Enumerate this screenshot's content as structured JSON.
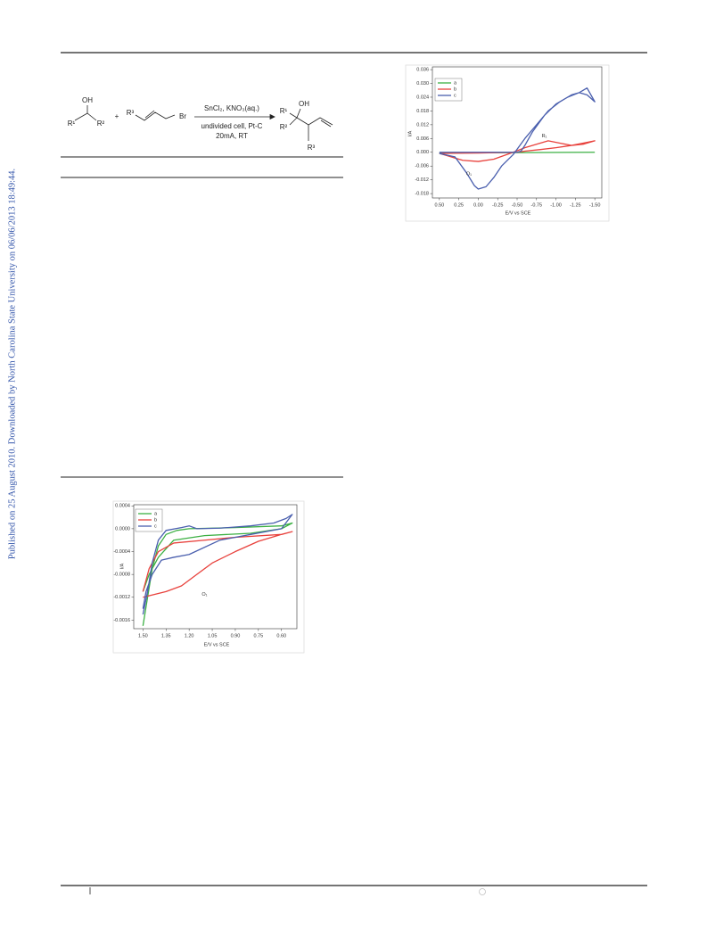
{
  "sidebar": "Published on 25 August 2010. Downloaded by North Carolina State University on 06/06/2013 18:49:44.",
  "scheme": {
    "texts": [
      "OH",
      "R¹",
      "R²",
      "+",
      "R³",
      "Br",
      "SnCl₂, KNO₃(aq.)",
      "undivided cell, Pt-C",
      "20mA, RT",
      "OH",
      "R¹",
      "R²",
      "R³"
    ]
  },
  "chart_data": [
    {
      "type": "line",
      "xlabel": "E/V vs SCE",
      "ylabel": "I/A",
      "legend": "upper left",
      "xlim": [
        0.59,
        -1.59
      ],
      "ylim": [
        -0.0199,
        0.0372
      ],
      "xticks": [
        {
          "value": 0.5,
          "label": "0.50"
        },
        0.25,
        {
          "value": 0,
          "label": "0.00"
        },
        -0.25,
        {
          "value": -0.5,
          "label": "-0.50"
        },
        -0.75,
        {
          "value": -1,
          "label": "-1.00"
        },
        -1.25,
        {
          "value": -1.5,
          "label": "-1.50"
        }
      ],
      "yticks": [
        {
          "value": 0.036,
          "label": "0.036"
        },
        {
          "value": 0.03,
          "label": "0.030"
        },
        0.024,
        0.018,
        0.012,
        0.006,
        {
          "value": 0,
          "label": "0.000"
        },
        -0.006,
        -0.012,
        -0.018
      ],
      "annotations": [
        {
          "text": "R₁",
          "x": -0.85,
          "y": 0.007
        },
        {
          "text": "O₁",
          "x": 0.12,
          "y": -0.0095
        }
      ],
      "series": [
        {
          "name": "a",
          "color": "#3cb043",
          "x": [
            0.5,
            -1.5
          ],
          "values": [
            -0.0003,
            0
          ]
        },
        {
          "name": "b",
          "color": "#e8413c",
          "x": [
            0.5,
            0.35,
            0.2,
            0.0,
            -0.2,
            -0.45,
            -0.6,
            -0.75,
            -0.9,
            -1.05,
            -1.2,
            -1.35,
            -1.5,
            -1.35,
            -1.2,
            -1.0,
            -0.8,
            -0.6,
            -0.5,
            0.0,
            0.5
          ],
          "values": [
            -0.0005,
            -0.002,
            -0.0035,
            -0.004,
            -0.003,
            0,
            0.002,
            0.0035,
            0.005,
            0.004,
            0.003,
            0.0035,
            0.005,
            0.004,
            0.003,
            0.002,
            0.0012,
            0.0005,
            0,
            -0.0003,
            -0.0005
          ]
        },
        {
          "name": "c",
          "color": "#4a5fae",
          "x": [
            0.5,
            0.3,
            0.15,
            0.05,
            0.0,
            -0.1,
            -0.2,
            -0.3,
            -0.45,
            -0.6,
            -0.75,
            -0.9,
            -1.05,
            -1.2,
            -1.3,
            -1.4,
            -1.5,
            -1.4,
            -1.3,
            -1.15,
            -1.0,
            -0.85,
            -0.7,
            -0.6,
            -0.55,
            -0.5,
            0.5
          ],
          "values": [
            -0.0005,
            -0.002,
            -0.009,
            -0.0145,
            -0.016,
            -0.015,
            -0.011,
            -0.006,
            -0.001,
            0.006,
            0.012,
            0.018,
            0.022,
            0.025,
            0.026,
            0.025,
            0.022,
            0.028,
            0.026,
            0.024,
            0.021,
            0.016,
            0.009,
            0.003,
            0.0005,
            0,
            0
          ]
        }
      ]
    },
    {
      "type": "line",
      "xlabel": "E/V vs SCE",
      "ylabel": "I/A",
      "legend": "upper left",
      "xlim": [
        1.56,
        0.5
      ],
      "ylim": [
        -0.00175,
        0.00042
      ],
      "xticks": [
        {
          "value": 1.5,
          "label": "1.50"
        },
        1.35,
        {
          "value": 1.2,
          "label": "1.20"
        },
        1.05,
        {
          "value": 0.9,
          "label": "0.90"
        },
        0.75,
        {
          "value": 0.6,
          "label": "0.60"
        }
      ],
      "yticks": [
        0.0004,
        {
          "value": 0,
          "label": "0.0000"
        },
        -0.0004,
        -0.0008,
        -0.0012,
        -0.0016
      ],
      "annotations": [
        {
          "text": "O₁",
          "x": 1.1,
          "y": -0.00115
        }
      ],
      "series": [
        {
          "name": "a",
          "color": "#3cb043",
          "x": [
            1.5,
            1.47,
            1.44,
            1.4,
            1.35,
            1.28,
            1.2,
            0.9,
            0.6,
            0.53,
            0.6,
            0.8,
            1.1,
            1.3,
            1.4,
            1.46,
            1.5
          ],
          "values": [
            -0.0017,
            -0.0012,
            -0.0007,
            -0.0003,
            -0.0001,
            -3e-05,
            0,
            2e-05,
            5e-05,
            0.0001,
            0,
            -8e-05,
            -0.00012,
            -0.0002,
            -0.0005,
            -0.0008,
            -0.0011
          ]
        },
        {
          "name": "b",
          "color": "#e8413c",
          "x": [
            1.5,
            1.35,
            1.25,
            1.15,
            1.05,
            0.9,
            0.75,
            0.6,
            0.53,
            0.6,
            0.9,
            1.1,
            1.3,
            1.4,
            1.46,
            1.5
          ],
          "values": [
            -0.0012,
            -0.0011,
            -0.001,
            -0.0008,
            -0.0006,
            -0.0004,
            -0.00022,
            -0.0001,
            -5e-05,
            -0.0001,
            -0.00015,
            -0.0002,
            -0.00025,
            -0.0004,
            -0.0007,
            -0.0011
          ]
        },
        {
          "name": "c",
          "color": "#4a5fae",
          "x": [
            1.5,
            1.47,
            1.44,
            1.4,
            1.35,
            1.25,
            1.2,
            1.15,
            1.0,
            0.8,
            0.65,
            0.57,
            0.53,
            0.6,
            0.8,
            1.0,
            1.2,
            1.3,
            1.38,
            1.44,
            1.48,
            1.5
          ],
          "values": [
            -0.0015,
            -0.0011,
            -0.0006,
            -0.0002,
            -3e-05,
            2e-05,
            5e-05,
            0,
            1e-05,
            5e-05,
            0.0001,
            0.00018,
            0.00025,
            0,
            -0.0001,
            -0.0002,
            -0.00045,
            -0.0005,
            -0.00055,
            -0.0008,
            -0.0011,
            -0.0014
          ]
        }
      ]
    }
  ]
}
